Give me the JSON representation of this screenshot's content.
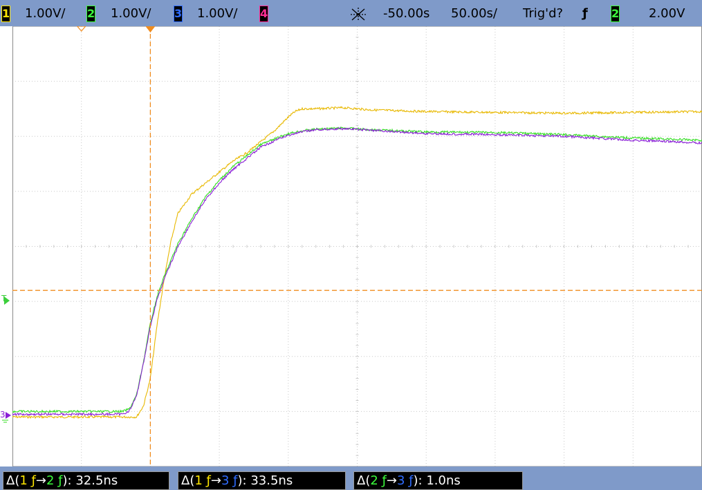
{
  "colors": {
    "ch1": "#e8b800",
    "ch2": "#33dd22",
    "ch3": "#8a1ed6",
    "ch4": "#ff2d95",
    "cursor": "#f08c1e",
    "grid": "#c8c8c8",
    "bar": "#7f9ac9"
  },
  "topbar": {
    "ch1": {
      "num": "1",
      "scale": "1.00V/"
    },
    "ch2": {
      "num": "2",
      "scale": "1.00V/"
    },
    "ch3": {
      "num": "3",
      "scale": "1.00V/"
    },
    "ch4": {
      "num": "4"
    },
    "timebase_icon": "timebase-icon",
    "delay": "-50.00s",
    "timescale": "50.00s/",
    "trigger_status": "Trig'd?",
    "trigger_edge": "ƒ",
    "trigger_source": "2",
    "trigger_level": "2.00V"
  },
  "markers": {
    "trigger": "T",
    "ch3_ground": "3"
  },
  "measurements": [
    {
      "delta": "Δ(",
      "from": "1",
      "arrow": "→",
      "to": "2",
      "sep": "):",
      "value": "32.5ns"
    },
    {
      "delta": "Δ(",
      "from": "1",
      "arrow": "→",
      "to": "3",
      "sep": "):",
      "value": "33.5ns"
    },
    {
      "delta": "Δ(",
      "from": "2",
      "arrow": "→",
      "to": "3",
      "sep": "):",
      "value": "1.0ns"
    }
  ],
  "chart_data": {
    "type": "line",
    "x_unit": "ns",
    "y_unit": "V",
    "xlim": [
      -300,
      200
    ],
    "ylim": [
      -4,
      4
    ],
    "grid": true,
    "cursor_x": -200,
    "cursor_y": -0.8,
    "series": [
      {
        "channel": "1",
        "x": [
          -300,
          -210,
          -205,
          -200,
          -195,
          -190,
          -185,
          -180,
          -170,
          -160,
          -150,
          -140,
          -130,
          -120,
          -110,
          -100,
          -95,
          -90,
          -80,
          -60,
          -40,
          0,
          100,
          200
        ],
        "y": [
          -3.1,
          -3.1,
          -2.9,
          -2.4,
          -1.4,
          -0.6,
          0.1,
          0.6,
          0.95,
          1.15,
          1.35,
          1.55,
          1.7,
          1.9,
          2.1,
          2.35,
          2.45,
          2.5,
          2.5,
          2.52,
          2.48,
          2.45,
          2.42,
          2.45
        ]
      },
      {
        "channel": "2",
        "x": [
          -300,
          -220,
          -215,
          -210,
          -205,
          -200,
          -195,
          -190,
          -185,
          -180,
          -170,
          -160,
          -150,
          -140,
          -130,
          -120,
          -110,
          -100,
          -90,
          -80,
          -60,
          -40,
          -20,
          0,
          50,
          100,
          150,
          200
        ],
        "y": [
          -3.0,
          -3.0,
          -2.95,
          -2.7,
          -2.1,
          -1.4,
          -0.9,
          -0.55,
          -0.25,
          0.05,
          0.5,
          0.9,
          1.2,
          1.45,
          1.65,
          1.85,
          1.95,
          2.05,
          2.1,
          2.13,
          2.15,
          2.12,
          2.1,
          2.08,
          2.07,
          2.03,
          1.97,
          1.93
        ]
      },
      {
        "channel": "3",
        "x": [
          -300,
          -220,
          -215,
          -210,
          -205,
          -200,
          -195,
          -190,
          -185,
          -180,
          -170,
          -160,
          -150,
          -140,
          -130,
          -120,
          -110,
          -100,
          -90,
          -80,
          -60,
          -40,
          -20,
          0,
          50,
          100,
          150,
          200
        ],
        "y": [
          -3.05,
          -3.05,
          -2.98,
          -2.72,
          -2.12,
          -1.45,
          -0.95,
          -0.6,
          -0.3,
          0.0,
          0.45,
          0.85,
          1.15,
          1.4,
          1.6,
          1.8,
          1.92,
          2.02,
          2.08,
          2.12,
          2.14,
          2.11,
          2.08,
          2.05,
          2.03,
          2.0,
          1.93,
          1.88
        ]
      }
    ]
  }
}
